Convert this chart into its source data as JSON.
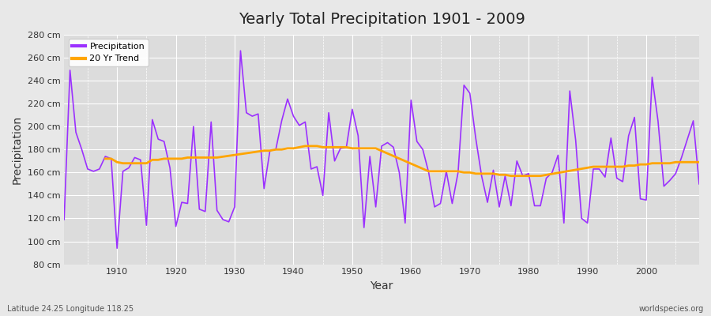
{
  "title": "Yearly Total Precipitation 1901 - 2009",
  "xlabel": "Year",
  "ylabel": "Precipitation",
  "subtitle": "Latitude 24.25 Longitude 118.25",
  "watermark": "worldspecies.org",
  "ylim": [
    80,
    280
  ],
  "yticks": [
    80,
    100,
    120,
    140,
    160,
    180,
    200,
    220,
    240,
    260,
    280
  ],
  "ytick_labels": [
    "80 cm",
    "100 cm",
    "120 cm",
    "140 cm",
    "160 cm",
    "180 cm",
    "200 cm",
    "220 cm",
    "240 cm",
    "260 cm",
    "280 cm"
  ],
  "precip_color": "#9B30FF",
  "trend_color": "#FFA500",
  "bg_color": "#E8E8E8",
  "plot_bg_color": "#DCDCDC",
  "grid_color": "#FFFFFF",
  "years": [
    1901,
    1902,
    1903,
    1904,
    1905,
    1906,
    1907,
    1908,
    1909,
    1910,
    1911,
    1912,
    1913,
    1914,
    1915,
    1916,
    1917,
    1918,
    1919,
    1920,
    1921,
    1922,
    1923,
    1924,
    1925,
    1926,
    1927,
    1928,
    1929,
    1930,
    1931,
    1932,
    1933,
    1934,
    1935,
    1936,
    1937,
    1938,
    1939,
    1940,
    1941,
    1942,
    1943,
    1944,
    1945,
    1946,
    1947,
    1948,
    1949,
    1950,
    1951,
    1952,
    1953,
    1954,
    1955,
    1956,
    1957,
    1958,
    1959,
    1960,
    1961,
    1962,
    1963,
    1964,
    1965,
    1966,
    1967,
    1968,
    1969,
    1970,
    1971,
    1972,
    1973,
    1974,
    1975,
    1976,
    1977,
    1978,
    1979,
    1980,
    1981,
    1982,
    1983,
    1984,
    1985,
    1986,
    1987,
    1988,
    1989,
    1990,
    1991,
    1992,
    1993,
    1994,
    1995,
    1996,
    1997,
    1998,
    1999,
    2000,
    2001,
    2002,
    2003,
    2004,
    2005,
    2006,
    2007,
    2008,
    2009
  ],
  "precip": [
    119,
    249,
    195,
    180,
    163,
    161,
    163,
    174,
    172,
    94,
    161,
    164,
    173,
    171,
    114,
    206,
    189,
    187,
    164,
    113,
    134,
    133,
    200,
    128,
    126,
    204,
    127,
    119,
    117,
    130,
    266,
    212,
    209,
    211,
    146,
    179,
    180,
    205,
    224,
    209,
    201,
    204,
    163,
    165,
    140,
    212,
    170,
    181,
    182,
    215,
    192,
    112,
    174,
    130,
    183,
    186,
    182,
    160,
    116,
    223,
    187,
    180,
    160,
    130,
    133,
    161,
    133,
    160,
    236,
    229,
    190,
    157,
    134,
    162,
    130,
    157,
    131,
    170,
    157,
    159,
    131,
    131,
    155,
    160,
    175,
    116,
    231,
    188,
    120,
    116,
    163,
    163,
    156,
    190,
    155,
    152,
    192,
    208,
    137,
    136,
    243,
    205,
    148,
    153,
    159,
    173,
    189,
    205,
    150
  ],
  "trend_years": [
    1908,
    1909,
    1910,
    1911,
    1912,
    1913,
    1914,
    1915,
    1916,
    1917,
    1918,
    1919,
    1920,
    1921,
    1922,
    1923,
    1924,
    1925,
    1926,
    1927,
    1935,
    1936,
    1937,
    1938,
    1939,
    1940,
    1941,
    1942,
    1943,
    1944,
    1945,
    1946,
    1947,
    1948,
    1949,
    1950,
    1951,
    1952,
    1953,
    1954,
    1963,
    1964,
    1965,
    1966,
    1967,
    1968,
    1969,
    1970,
    1971,
    1972,
    1973,
    1974,
    1975,
    1976,
    1977,
    1978,
    1979,
    1980,
    1981,
    1982,
    1991,
    1992,
    1993,
    1994,
    1995,
    1996,
    1997,
    1998,
    1999,
    2000,
    2001,
    2002,
    2003,
    2004,
    2005,
    2006,
    2007,
    2008,
    2009
  ],
  "trend_values": [
    172,
    172,
    169,
    168,
    168,
    168,
    168,
    168,
    171,
    171,
    172,
    172,
    172,
    172,
    173,
    173,
    173,
    173,
    173,
    173,
    179,
    179,
    180,
    180,
    181,
    181,
    182,
    183,
    183,
    183,
    182,
    182,
    182,
    182,
    182,
    181,
    181,
    181,
    181,
    181,
    161,
    161,
    161,
    161,
    161,
    161,
    160,
    160,
    159,
    159,
    159,
    159,
    158,
    158,
    157,
    157,
    157,
    157,
    157,
    157,
    165,
    165,
    165,
    165,
    165,
    165,
    166,
    166,
    167,
    167,
    168,
    168,
    168,
    168,
    169,
    169,
    169,
    169,
    169
  ]
}
